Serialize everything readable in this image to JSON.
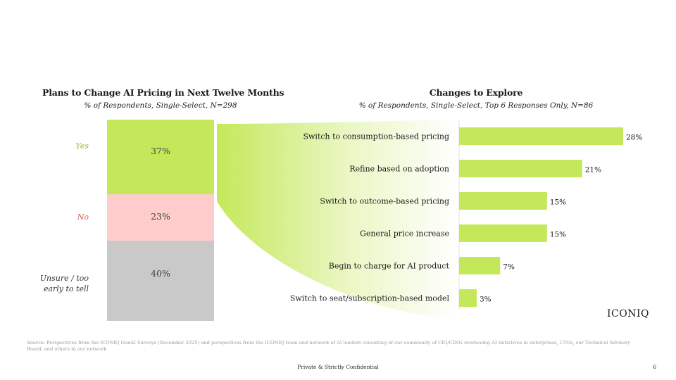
{
  "left_panel": {
    "title": "Plans to Change AI Pricing in Next Twelve Months",
    "subtitle": "% of Respondents, Single-Select, N=298"
  },
  "right_panel": {
    "title": "Changes to Explore",
    "subtitle": "% of Respondents, Single-Select, Top 6 Responses Only, N=86"
  },
  "chart_data": [
    {
      "type": "bar",
      "orientation": "stacked-vertical",
      "title": "Plans to Change AI Pricing in Next Twelve Months",
      "subtitle": "% of Respondents, Single-Select, N=298",
      "categories": [
        "Yes",
        "No",
        "Unsure / too early to tell"
      ],
      "values": [
        37,
        23,
        40
      ],
      "value_labels": [
        "37%",
        "23%",
        "40%"
      ],
      "colors": [
        "#c5e85a",
        "#ffcccc",
        "#c9c9c9"
      ],
      "label_colors": [
        "#8cb832",
        "#d05a5a",
        "#333333"
      ]
    },
    {
      "type": "bar",
      "orientation": "horizontal",
      "title": "Changes to Explore",
      "subtitle": "% of Respondents, Single-Select, Top 6 Responses Only, N=86",
      "categories": [
        "Switch to consumption-based pricing",
        "Refine based on adoption",
        "Switch to outcome-based pricing",
        "General price increase",
        "Begin to charge for AI product",
        "Switch to seat/subscription-based model"
      ],
      "values": [
        28,
        21,
        15,
        15,
        7,
        3
      ],
      "value_labels": [
        "28%",
        "21%",
        "15%",
        "15%",
        "7%",
        "3%"
      ],
      "color": "#c5e85a",
      "xlim": [
        0,
        28
      ]
    }
  ],
  "logo_text": "ICONIQ",
  "footer": {
    "source": "Source: Perspectives from the ICONIQ GenAI Surveys (December 2025) and perspectives from the ICONIQ team and network of AI leaders consisting of our community of CIO/CDOs overseeing AI initiatives in enterprises, CTOs, our Technical Advisory Board, and others in our network",
    "confidential": "Private & Strictly Confidential",
    "page_number": "6"
  }
}
